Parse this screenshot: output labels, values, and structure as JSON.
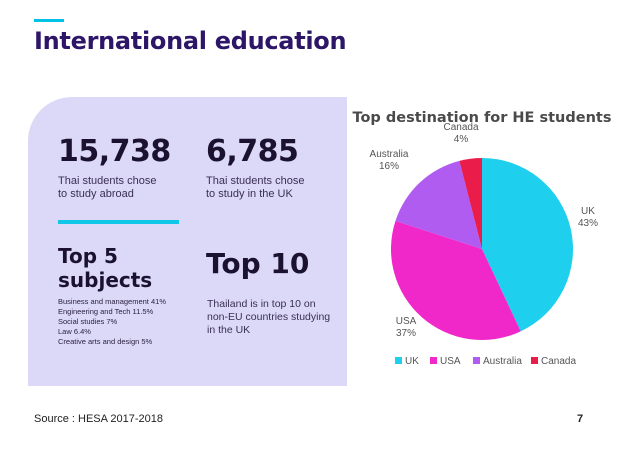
{
  "page": {
    "title": "International education",
    "source": "Source : HESA 2017-2018",
    "page_number": "7"
  },
  "stats": [
    {
      "value": "15,738",
      "description": "Thai students chose to study abroad"
    },
    {
      "value": "6,785",
      "description": "Thai students chose to study in the UK"
    }
  ],
  "subjects": {
    "title": "Top 5 subjects",
    "items": [
      "Business and management 41%",
      "Engineering and Tech 11.5%",
      "Social studies 7%",
      "Law 6.4%",
      "Creative arts and design 5%"
    ]
  },
  "top10": {
    "title": "Top 10",
    "description": "Thailand is in top 10 on non-EU countries studying in the UK"
  },
  "chart_data": {
    "type": "pie",
    "title": "Top destination for HE students",
    "categories": [
      "UK",
      "USA",
      "Australia",
      "Canada"
    ],
    "values": [
      43,
      37,
      16,
      4
    ],
    "labels": [
      "43%",
      "37%",
      "16%",
      "4%"
    ],
    "colors": [
      "#1ed0ee",
      "#f028c9",
      "#b05cf0",
      "#ea1c4a"
    ],
    "legend_position": "bottom"
  }
}
